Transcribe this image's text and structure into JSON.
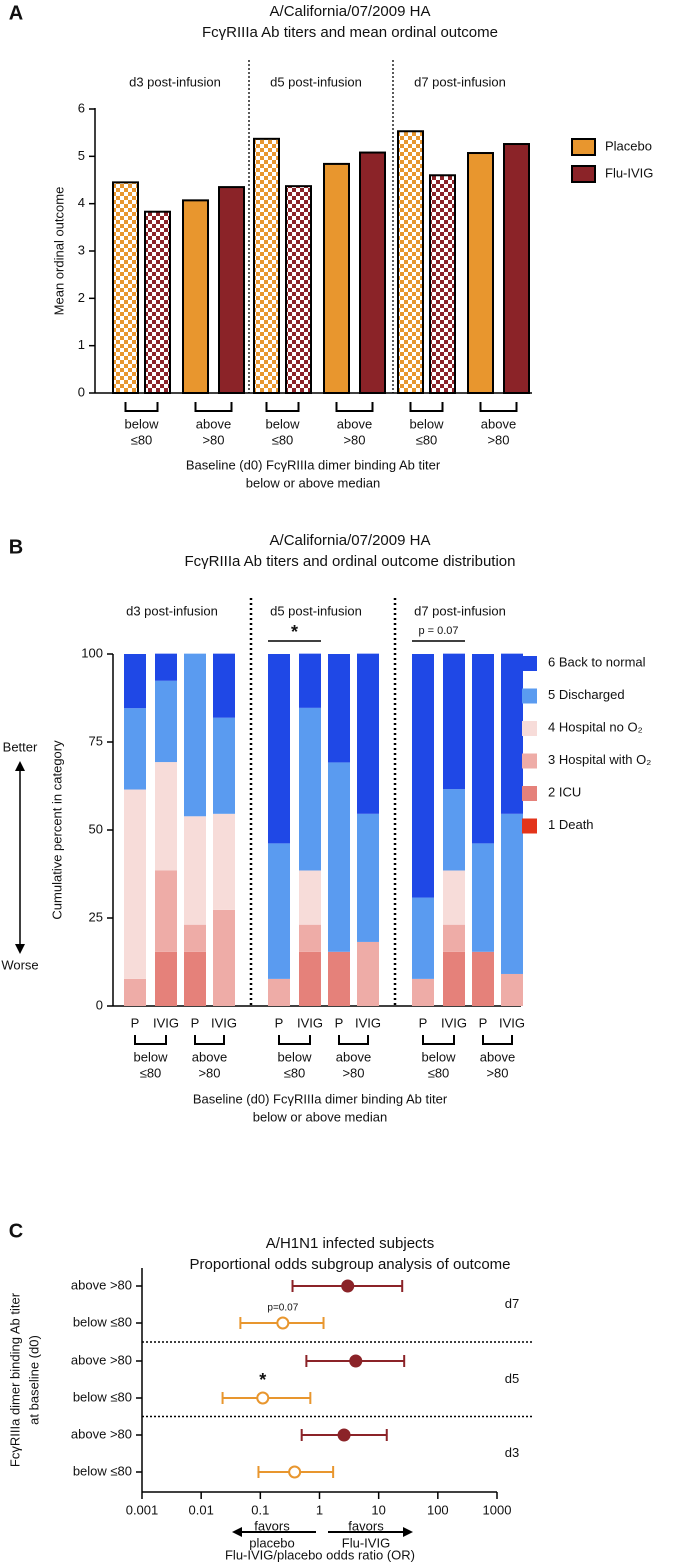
{
  "chart_data": [
    {
      "type": "bar",
      "panel": "A",
      "title": [
        "A/California/07/2009 HA",
        "FcγRIIIa Ab titers and mean ordinal outcome"
      ],
      "groups": [
        "d3 post-infusion",
        "d5 post-infusion",
        "d7 post-infusion"
      ],
      "subgroups": [
        {
          "label": [
            "below",
            "≤80"
          ],
          "checkered": true
        },
        {
          "label": [
            "above",
            ">80"
          ],
          "checkered": false
        }
      ],
      "series": [
        {
          "name": "Placebo",
          "color": "#E8962E",
          "values": [
            4.45,
            4.07,
            5.37,
            4.84,
            5.53,
            5.07
          ]
        },
        {
          "name": "Flu-IVIG",
          "color": "#8B2328",
          "values": [
            3.83,
            4.35,
            4.37,
            5.08,
            4.6,
            5.26
          ]
        }
      ],
      "y_label": "Mean ordinal outcome",
      "x_label": [
        "Baseline (d0) FcγRIIIa dimer binding Ab titer",
        "below or above median"
      ],
      "ylim": [
        0,
        6
      ],
      "yticks": [
        0,
        1,
        2,
        3,
        4,
        5,
        6
      ],
      "legend": "upper right"
    },
    {
      "type": "stacked_bar",
      "panel": "B",
      "title": [
        "A/California/07/2009 HA",
        "FcγRIIIa Ab titers and ordinal outcome distribution"
      ],
      "groups": [
        "d3 post-infusion",
        "d5 post-infusion",
        "d7 post-infusion"
      ],
      "subgroups": [
        {
          "label": [
            "below",
            "≤80"
          ]
        },
        {
          "label": [
            "above",
            ">80"
          ]
        }
      ],
      "bar_labels": [
        "P",
        "IVIG"
      ],
      "comparisons": [
        null,
        "*",
        "p = 0.07"
      ],
      "side_labels": [
        "Better",
        "Worse"
      ],
      "series": [
        {
          "name": "1 Death",
          "color": "#E3341B",
          "values": [
            0,
            0,
            0,
            0,
            0,
            0,
            0,
            0,
            0,
            0,
            0,
            0
          ]
        },
        {
          "name": "2 ICU",
          "color": "#E5817A",
          "values": [
            0,
            15.4,
            15.4,
            0,
            0,
            15.4,
            15.4,
            0,
            0,
            15.4,
            15.4,
            0
          ]
        },
        {
          "name": "3 Hospital with O₂",
          "color": "#EEACA7",
          "values": [
            7.7,
            23.1,
            7.7,
            27.3,
            7.7,
            7.7,
            0,
            18.2,
            7.7,
            7.7,
            0,
            9.1
          ]
        },
        {
          "name": "4 Hospital no O₂",
          "color": "#F7DCD9",
          "values": [
            53.8,
            30.8,
            30.8,
            27.3,
            0,
            15.4,
            0,
            0,
            0,
            15.4,
            0,
            0
          ]
        },
        {
          "name": "5 Discharged",
          "color": "#5A9BF0",
          "values": [
            23.1,
            23.1,
            46.2,
            27.3,
            38.5,
            46.2,
            53.8,
            36.4,
            23.1,
            23.1,
            30.8,
            45.5
          ]
        },
        {
          "name": "6 Back to normal",
          "color": "#1F48E6",
          "values": [
            15.4,
            7.7,
            0,
            18.2,
            53.8,
            15.4,
            30.8,
            45.5,
            69.2,
            38.5,
            53.8,
            45.5
          ]
        }
      ],
      "y_label": "Cumulative percent in category",
      "x_label": [
        "Baseline (d0) FcγRIIIa dimer binding Ab titer",
        "below or above median"
      ],
      "ylim": [
        0,
        100
      ],
      "yticks": [
        0,
        25,
        50,
        75,
        100
      ],
      "legend": "right"
    },
    {
      "type": "forest",
      "panel": "C",
      "title": [
        "A/H1N1 infected subjects",
        "Proportional odds subgroup analysis of outcome"
      ],
      "groups": [
        "d7",
        "d5",
        "d3"
      ],
      "categories": [
        "above >80",
        "below ≤80",
        "above >80",
        "below ≤80",
        "above >80",
        "below ≤80"
      ],
      "values": [
        3.0,
        0.24,
        4.1,
        0.11,
        2.6,
        0.38
      ],
      "lower": [
        0.35,
        0.046,
        0.6,
        0.023,
        0.5,
        0.093
      ],
      "upper": [
        25,
        1.17,
        27,
        0.7,
        13.7,
        1.7
      ],
      "marker_colors": [
        "#8B2328",
        "#E8962E",
        "#8B2328",
        "#E8962E",
        "#8B2328",
        "#E8962E"
      ],
      "marker_filled": [
        true,
        false,
        true,
        false,
        true,
        false
      ],
      "row_annotations": [
        null,
        "p=0.07",
        null,
        "*",
        null,
        null
      ],
      "direction_labels": [
        [
          "favors",
          "placebo"
        ],
        [
          "favors",
          "Flu-IVIG"
        ]
      ],
      "x_label": "Flu-IVIG/placebo odds ratio (OR)",
      "y_label": [
        "FcγRIIIa dimer binding Ab titer",
        "at baseline (d0)"
      ],
      "xlim": [
        0.001,
        1000
      ],
      "xticks": [
        0.001,
        0.01,
        0.1,
        1,
        10,
        100,
        1000
      ],
      "log_x": true
    }
  ]
}
